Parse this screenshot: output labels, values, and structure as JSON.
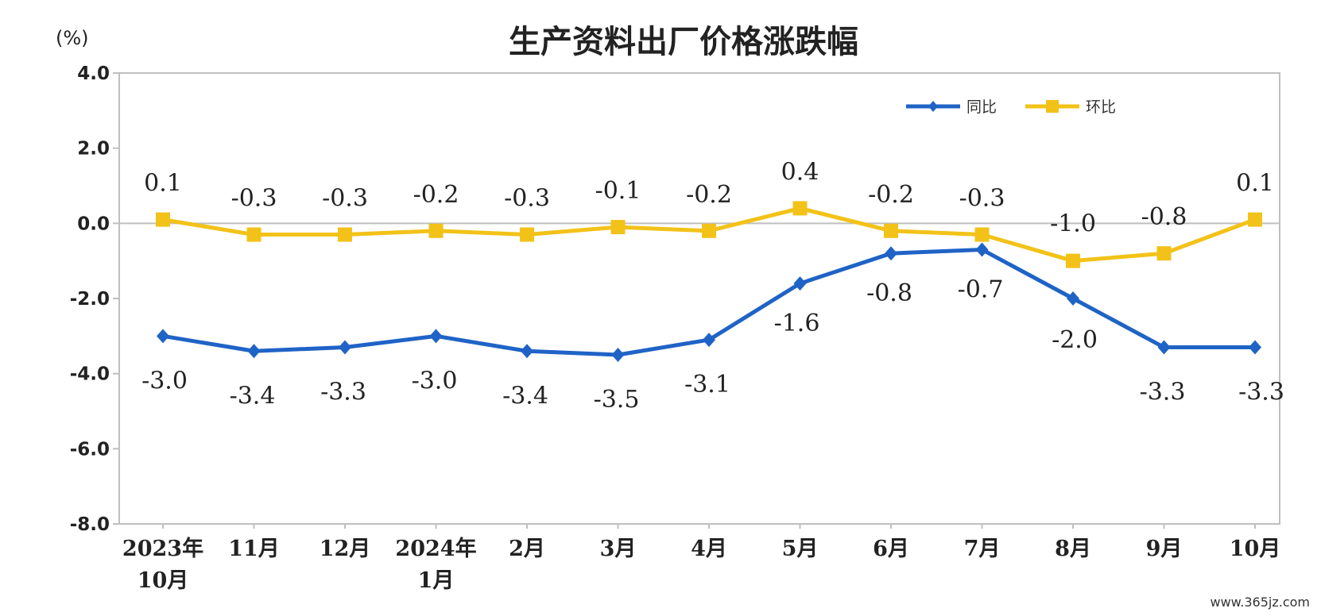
{
  "chart_data": {
    "type": "line",
    "title": "生产资料出厂价格涨跌幅",
    "unit": "(%)",
    "categories": [
      [
        "2023年",
        "10月"
      ],
      [
        "11月"
      ],
      [
        "12月"
      ],
      [
        "2024年",
        "1月"
      ],
      [
        "2月"
      ],
      [
        "3月"
      ],
      [
        "4月"
      ],
      [
        "5月"
      ],
      [
        "6月"
      ],
      [
        "7月"
      ],
      [
        "8月"
      ],
      [
        "9月"
      ],
      [
        "10月"
      ]
    ],
    "ylim": [
      -8.0,
      4.0
    ],
    "yticks": [
      "4.0",
      "2.0",
      "0.0",
      "-2.0",
      "-4.0",
      "-6.0",
      "-8.0"
    ],
    "ytick_values": [
      4,
      2,
      0,
      -2,
      -4,
      -6,
      -8
    ],
    "legend_position": "top-right",
    "series": [
      {
        "name": "同比",
        "color": "#1f63c6",
        "marker": "diamond",
        "values": [
          -3.0,
          -3.4,
          -3.3,
          -3.0,
          -3.4,
          -3.5,
          -3.1,
          -1.6,
          -0.8,
          -0.7,
          -2.0,
          -3.3,
          -3.3
        ],
        "labels": [
          "-3.0",
          "-3.4",
          "-3.3",
          "-3.0",
          "-3.4",
          "-3.5",
          "-3.1",
          "-1.6",
          "-0.8",
          "-0.7",
          "-2.0",
          "-3.3",
          "-3.3"
        ]
      },
      {
        "name": "环比",
        "color": "#f2c218",
        "marker": "square",
        "values": [
          0.1,
          -0.3,
          -0.3,
          -0.2,
          -0.3,
          -0.1,
          -0.2,
          0.4,
          -0.2,
          -0.3,
          -1.0,
          -0.8,
          0.1
        ],
        "labels": [
          "0.1",
          "-0.3",
          "-0.3",
          "-0.2",
          "-0.3",
          "-0.1",
          "-0.2",
          "0.4",
          "-0.2",
          "-0.3",
          "-1.0",
          "-0.8",
          "0.1"
        ]
      }
    ]
  },
  "watermark": "www.365jz.com"
}
